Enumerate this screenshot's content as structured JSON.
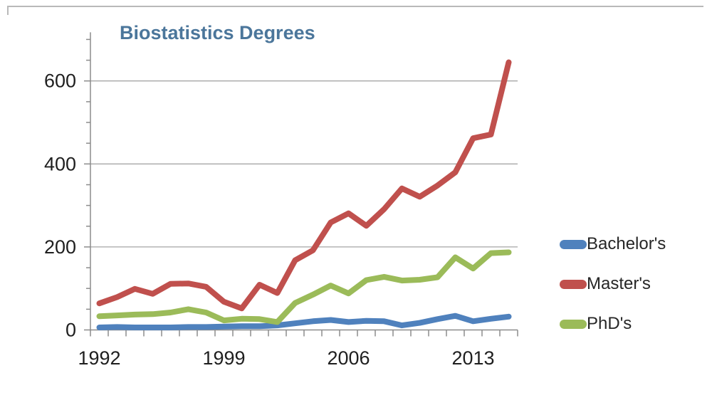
{
  "chart_data": {
    "type": "line",
    "title": "Biostatistics Degrees",
    "title_color": "#4b769b",
    "x": [
      1992,
      1993,
      1994,
      1995,
      1996,
      1997,
      1998,
      1999,
      2000,
      2001,
      2002,
      2003,
      2004,
      2005,
      2006,
      2007,
      2008,
      2009,
      2010,
      2011,
      2012,
      2013,
      2014,
      2015
    ],
    "series": [
      {
        "name": "Bachelor's",
        "color": "#4F81BD",
        "values": [
          6,
          7,
          6,
          6,
          6,
          7,
          7,
          8,
          9,
          9,
          11,
          16,
          21,
          24,
          19,
          22,
          21,
          11,
          17,
          26,
          34,
          21,
          27,
          32
        ]
      },
      {
        "name": "Master's",
        "color": "#C0504D",
        "values": [
          64,
          79,
          99,
          87,
          111,
          112,
          104,
          68,
          52,
          109,
          89,
          168,
          192,
          259,
          281,
          251,
          291,
          341,
          321,
          348,
          380,
          462,
          471,
          645
        ]
      },
      {
        "name": "PhD's",
        "color": "#9BBB59",
        "values": [
          33,
          35,
          37,
          38,
          42,
          50,
          42,
          23,
          27,
          26,
          19,
          65,
          85,
          107,
          88,
          120,
          128,
          119,
          121,
          127,
          175,
          148,
          185,
          187
        ]
      }
    ],
    "x_axis": {
      "tick_years": [
        1992,
        1999,
        2006,
        2013
      ],
      "tick_labels": [
        "1992",
        "1999",
        "2006",
        "2013"
      ],
      "minor_tick_every_year": true
    },
    "y_axis": {
      "min": 0,
      "max": 700,
      "major_ticks": [
        0,
        200,
        400,
        600
      ],
      "tick_labels": [
        "0",
        "200",
        "400",
        "600"
      ],
      "minor_tick_step": 50,
      "gridlines": [
        200,
        400,
        600
      ]
    },
    "grid": true,
    "legend_position": "right",
    "axis_color": "#8c8c8c",
    "gridline_color": "#a6a6a6",
    "label_color": "#1f1f1f"
  }
}
